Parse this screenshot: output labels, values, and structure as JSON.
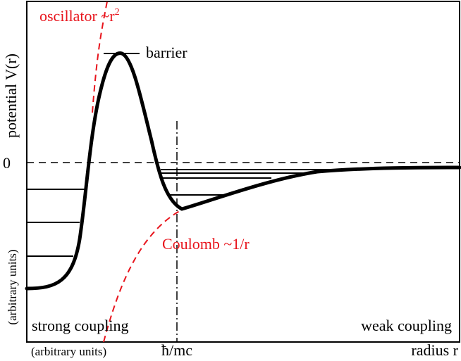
{
  "labels": {
    "oscillator": "oscillator ~r",
    "oscillator_exp": "2",
    "barrier": "barrier",
    "coulomb": "Coulomb ~1/r",
    "zero": "0",
    "strong_coupling": "strong coupling",
    "weak_coupling": "weak coupling",
    "y_axis_main": "potential V(r)",
    "y_axis_units": "(arbitrary units)",
    "x_axis_units": "(arbitrary units)",
    "x_tick": "ħ/mc",
    "x_axis": "radius r"
  },
  "colors": {
    "curve": "#000000",
    "approximation": "#e8141c",
    "frame": "#000000",
    "background": "#ffffff"
  }
}
